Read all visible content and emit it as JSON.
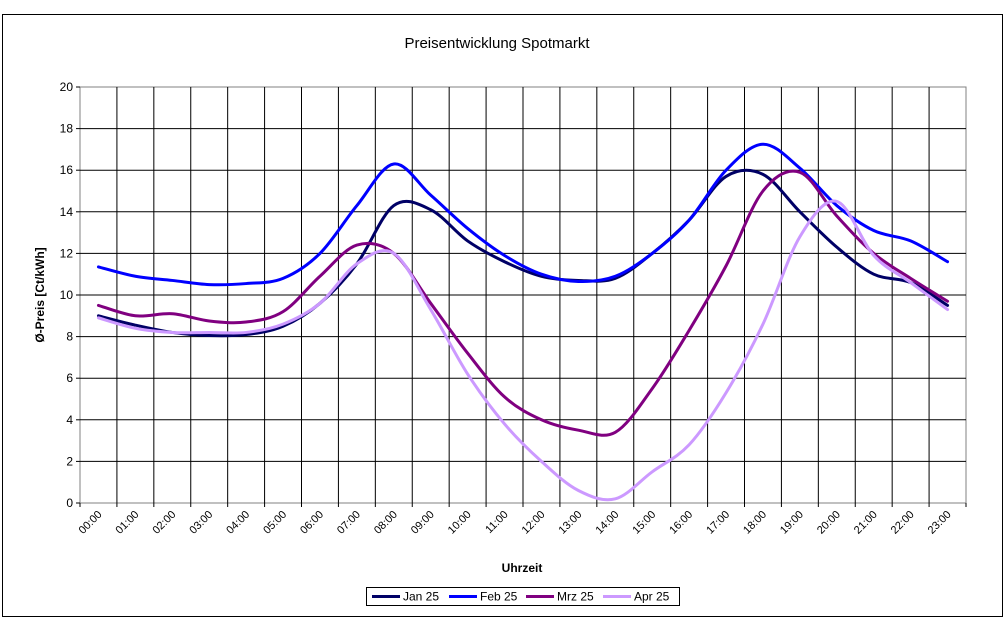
{
  "chart_data": {
    "type": "line",
    "title": "Preisentwicklung Spotmarkt",
    "xlabel": "Uhrzeit",
    "ylabel": "Ø-Preis [Ct/kWh]",
    "ylim": [
      0,
      20
    ],
    "yticks": [
      0,
      2,
      4,
      6,
      8,
      10,
      12,
      14,
      16,
      18,
      20
    ],
    "grid": true,
    "legend_position": "bottom",
    "categories": [
      "00:00",
      "01:00",
      "02:00",
      "03:00",
      "04:00",
      "05:00",
      "06:00",
      "07:00",
      "08:00",
      "09:00",
      "10:00",
      "11:00",
      "12:00",
      "13:00",
      "14:00",
      "15:00",
      "16:00",
      "17:00",
      "18:00",
      "19:00",
      "20:00",
      "21:00",
      "22:00",
      "23:00"
    ],
    "series": [
      {
        "name": "Jan 25",
        "color": "#000066",
        "values": [
          9.0,
          8.55,
          8.2,
          8.05,
          8.1,
          8.5,
          9.6,
          11.5,
          14.3,
          14.1,
          12.6,
          11.6,
          10.9,
          10.7,
          10.8,
          12.0,
          13.6,
          15.7,
          15.8,
          14.0,
          12.3,
          11.0,
          10.6,
          9.5
        ]
      },
      {
        "name": "Feb 25",
        "color": "#0000FF",
        "values": [
          11.35,
          10.9,
          10.7,
          10.5,
          10.55,
          10.8,
          12.0,
          14.3,
          16.3,
          14.8,
          13.2,
          11.9,
          11.0,
          10.65,
          10.9,
          12.0,
          13.6,
          16.0,
          17.25,
          16.1,
          14.3,
          13.1,
          12.6,
          11.6
        ]
      },
      {
        "name": "Mrz 25",
        "color": "#800080",
        "values": [
          9.5,
          9.0,
          9.1,
          8.75,
          8.7,
          9.2,
          10.9,
          12.4,
          12.0,
          9.6,
          7.2,
          5.1,
          4.0,
          3.5,
          3.4,
          5.5,
          8.3,
          11.4,
          15.0,
          15.9,
          13.8,
          12.0,
          10.8,
          9.7
        ]
      },
      {
        "name": "Apr 25",
        "color": "#CC99FF",
        "values": [
          8.9,
          8.4,
          8.2,
          8.2,
          8.2,
          8.6,
          9.6,
          11.5,
          12.0,
          9.3,
          6.2,
          3.8,
          2.0,
          0.6,
          0.2,
          1.5,
          2.8,
          5.3,
          8.6,
          12.8,
          14.5,
          11.9,
          10.6,
          9.3
        ]
      }
    ]
  }
}
